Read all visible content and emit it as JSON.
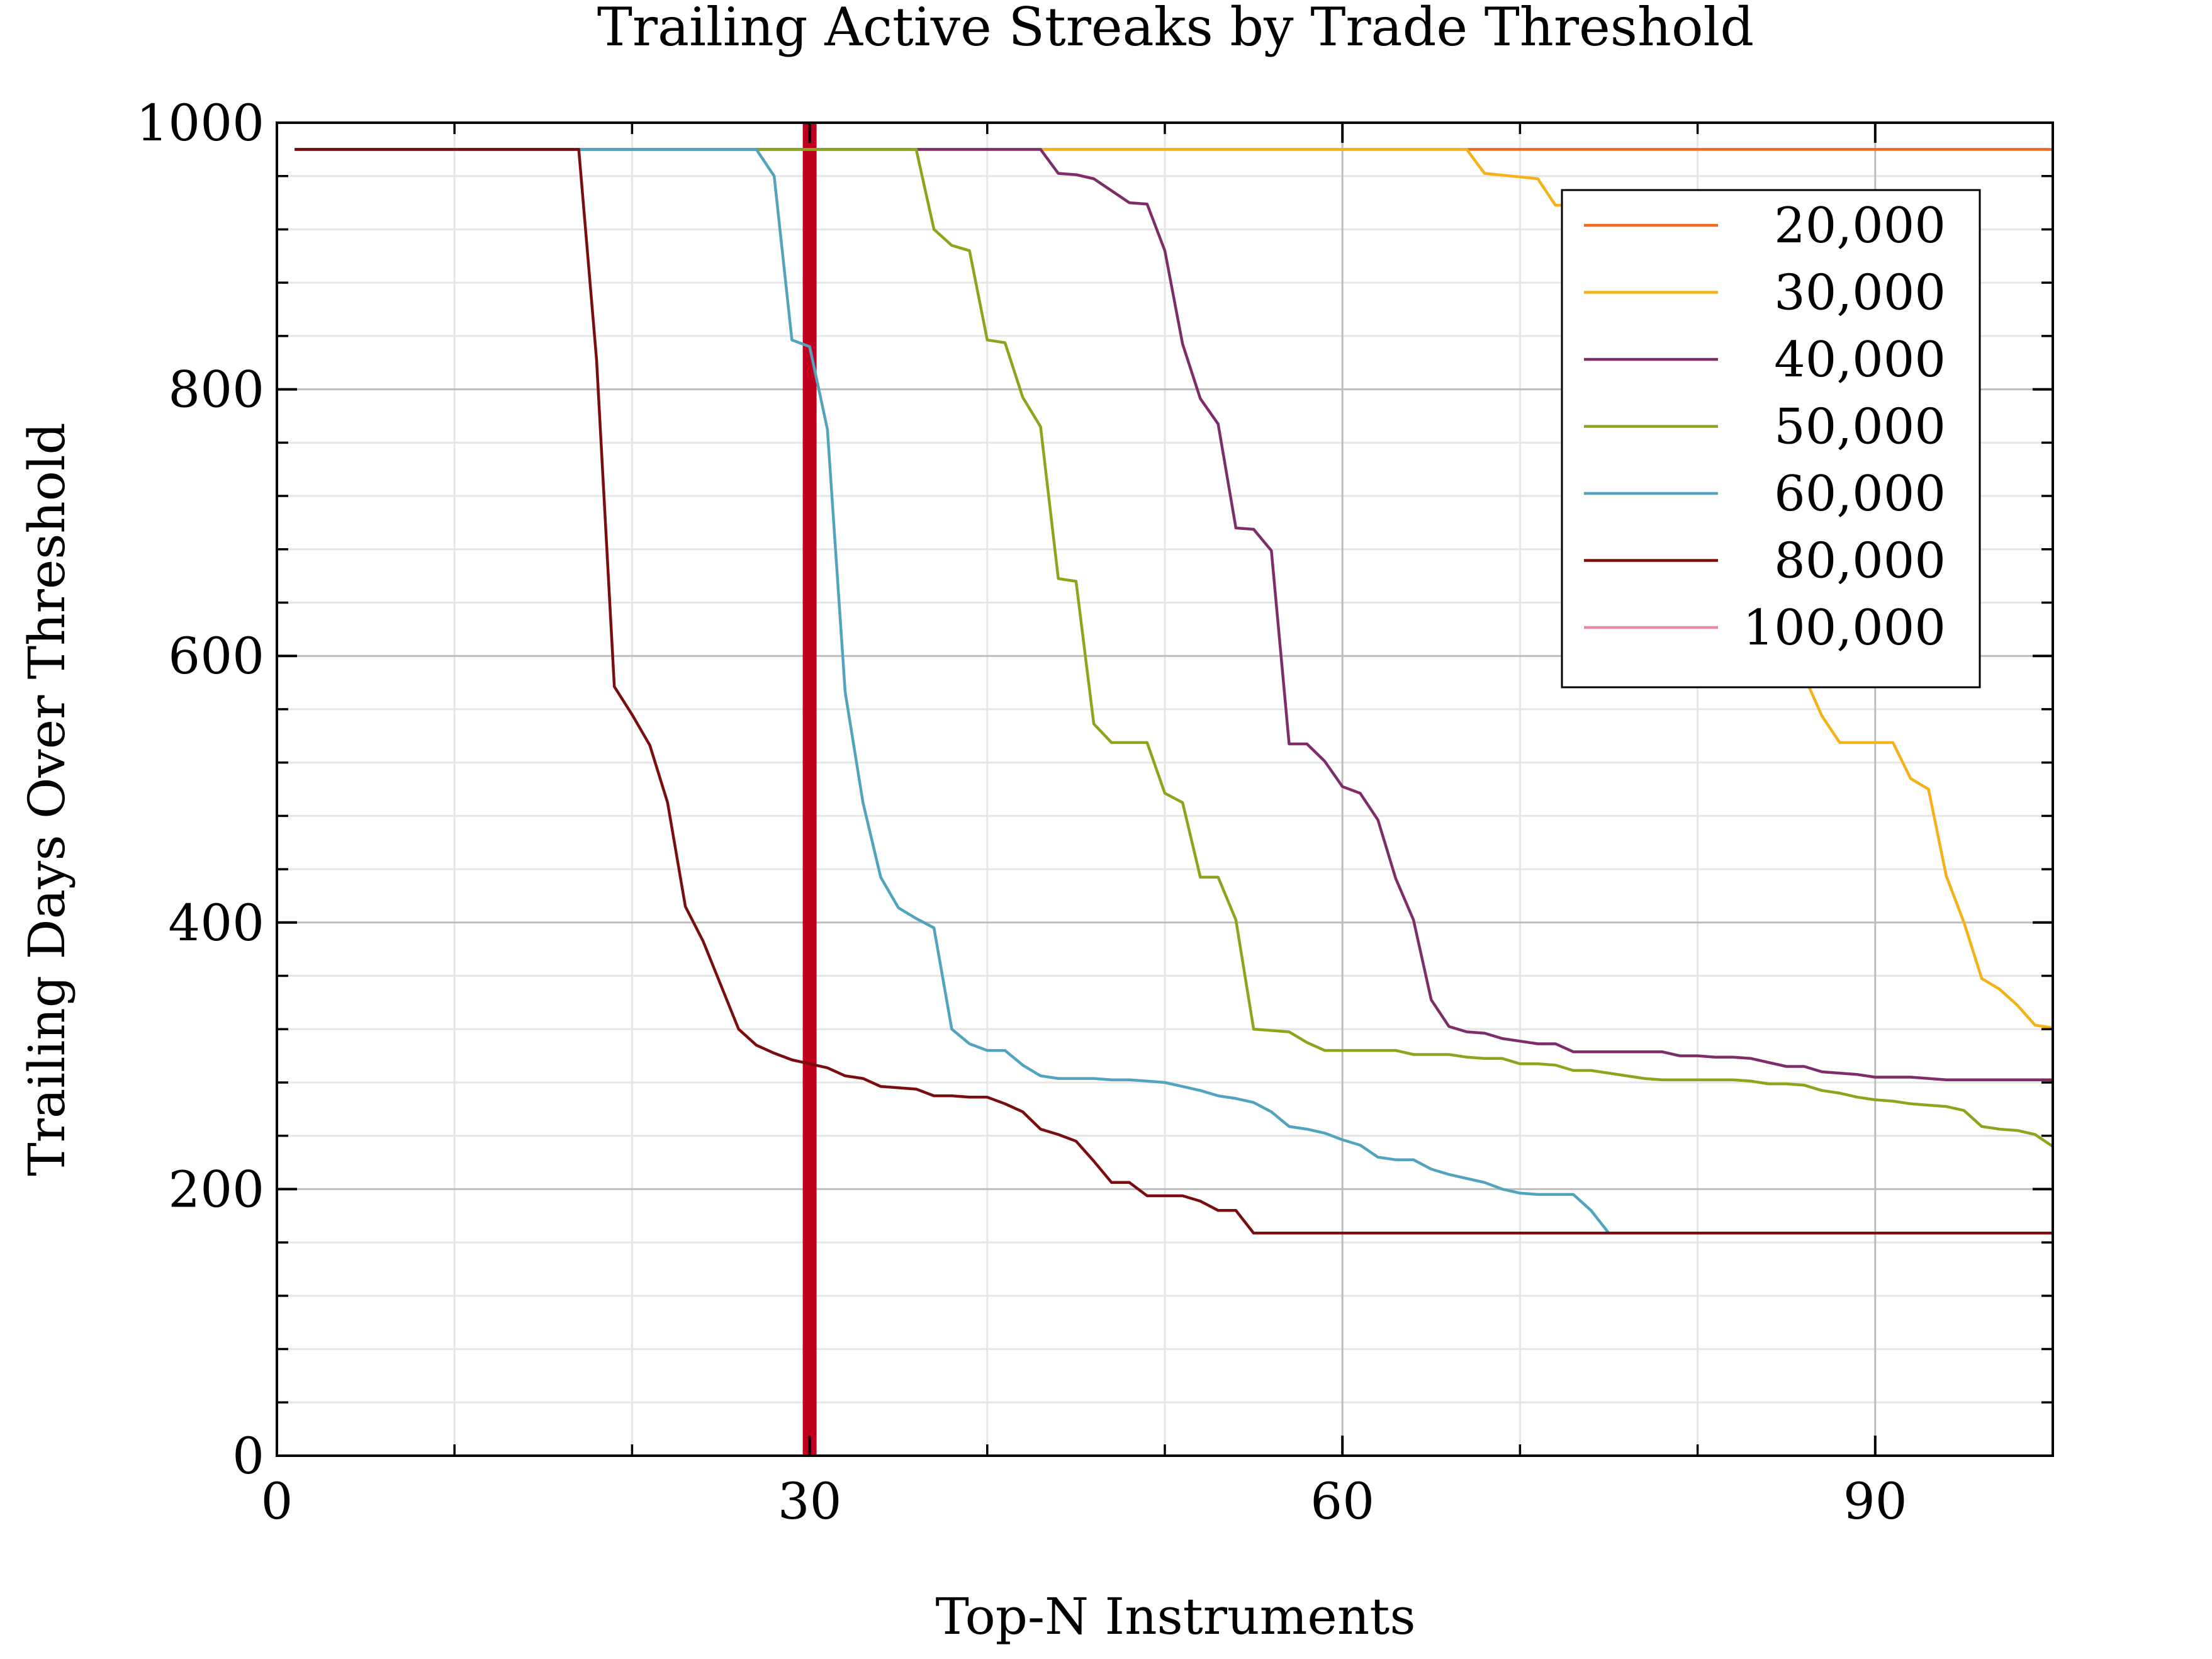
{
  "chart_data": {
    "type": "line",
    "title": "Trailing Active Streaks by Trade Threshold",
    "xlabel": "Top-N Instruments",
    "ylabel": "Trailing Days Over Threshold",
    "xlim": [
      0,
      100
    ],
    "ylim": [
      0,
      1000
    ],
    "xticks": [
      0,
      30,
      60,
      90
    ],
    "xtick_labels": [
      "0",
      "30",
      "60",
      "90"
    ],
    "yticks": [
      0,
      200,
      400,
      600,
      800,
      1000
    ],
    "ytick_labels": [
      "0",
      "200",
      "400",
      "600",
      "800",
      "1000"
    ],
    "grid": true,
    "legend_position": "top-right",
    "vline": {
      "x": 30,
      "color": "#c0001f"
    },
    "series": [
      {
        "name": "20,000",
        "color": "#ee6a1c",
        "x": [
          1,
          100
        ],
        "y": [
          980,
          980
        ]
      },
      {
        "name": "30,000",
        "color": "#f4b11a",
        "x": [
          1,
          67,
          68,
          71,
          72,
          73,
          74,
          78,
          79,
          80,
          81,
          82,
          83,
          84,
          85,
          86,
          87,
          88,
          89,
          90,
          91,
          92,
          93,
          94,
          95,
          96,
          97,
          98,
          99,
          100
        ],
        "y": [
          980,
          980,
          962,
          958,
          938,
          938,
          932,
          932,
          915,
          890,
          860,
          820,
          770,
          700,
          640,
          585,
          555,
          535,
          535,
          535,
          535,
          508,
          500,
          435,
          400,
          358,
          350,
          338,
          323,
          321
        ]
      },
      {
        "name": "40,000",
        "color": "#7d2d6a",
        "x": [
          1,
          43,
          44,
          45,
          46,
          47,
          48,
          49,
          50,
          51,
          52,
          53,
          54,
          55,
          56,
          57,
          58,
          59,
          60,
          61,
          62,
          63,
          64,
          65,
          66,
          67,
          68,
          69,
          70,
          71,
          72,
          73,
          74,
          75,
          76,
          77,
          78,
          79,
          80,
          81,
          82,
          83,
          84,
          85,
          86,
          87,
          88,
          89,
          90,
          91,
          92,
          93,
          94,
          95,
          96,
          97,
          98,
          99,
          100
        ],
        "y": [
          980,
          980,
          962,
          961,
          958,
          949,
          940,
          939,
          904,
          834,
          793,
          774,
          696,
          695,
          679,
          534,
          534,
          521,
          502,
          497,
          477,
          433,
          402,
          342,
          322,
          318,
          317,
          313,
          311,
          309,
          309,
          303,
          303,
          303,
          303,
          303,
          303,
          300,
          300,
          299,
          299,
          298,
          295,
          292,
          292,
          288,
          287,
          286,
          284,
          284,
          284,
          283,
          282,
          282,
          282,
          282,
          282,
          282,
          282
        ]
      },
      {
        "name": "50,000",
        "color": "#8aa61c",
        "x": [
          1,
          36,
          37,
          38,
          39,
          40,
          41,
          42,
          43,
          44,
          45,
          46,
          47,
          48,
          49,
          50,
          51,
          52,
          53,
          54,
          55,
          56,
          57,
          58,
          59,
          60,
          61,
          62,
          63,
          64,
          65,
          66,
          67,
          68,
          69,
          70,
          71,
          72,
          73,
          74,
          75,
          76,
          77,
          78,
          79,
          80,
          81,
          82,
          83,
          84,
          85,
          86,
          87,
          88,
          89,
          90,
          91,
          92,
          93,
          94,
          95,
          96,
          97,
          98,
          99,
          100
        ],
        "y": [
          980,
          980,
          920,
          908,
          904,
          837,
          835,
          794,
          772,
          658,
          656,
          549,
          535,
          535,
          535,
          497,
          490,
          434,
          434,
          402,
          320,
          319,
          318,
          310,
          304,
          304,
          304,
          304,
          304,
          301,
          301,
          301,
          299,
          298,
          298,
          294,
          294,
          293,
          289,
          289,
          287,
          285,
          283,
          282,
          282,
          282,
          282,
          282,
          281,
          279,
          279,
          278,
          274,
          272,
          269,
          267,
          266,
          264,
          263,
          262,
          259,
          247,
          245,
          244,
          241,
          232
        ]
      },
      {
        "name": "60,000",
        "color": "#52a3bd",
        "x": [
          1,
          27,
          28,
          29,
          30,
          31,
          32,
          33,
          34,
          35,
          36,
          37,
          38,
          39,
          40,
          41,
          42,
          43,
          44,
          45,
          46,
          47,
          48,
          49,
          50,
          51,
          52,
          53,
          54,
          55,
          56,
          57,
          58,
          59,
          60,
          61,
          62,
          63,
          64,
          65,
          66,
          67,
          68,
          69,
          70,
          71,
          72,
          73,
          74,
          75,
          100
        ],
        "y": [
          980,
          980,
          960,
          837,
          832,
          770,
          573,
          490,
          434,
          411,
          403,
          396,
          320,
          309,
          304,
          304,
          293,
          285,
          283,
          283,
          283,
          282,
          282,
          281,
          280,
          277,
          274,
          270,
          268,
          265,
          258,
          247,
          245,
          242,
          237,
          233,
          224,
          222,
          222,
          215,
          211,
          208,
          205,
          200,
          197,
          196,
          196,
          196,
          184,
          167,
          167
        ]
      },
      {
        "name": "80,000",
        "color": "#7a0d0d",
        "x": [
          1,
          17,
          18,
          19,
          20,
          21,
          22,
          23,
          24,
          25,
          26,
          27,
          28,
          29,
          30,
          31,
          32,
          33,
          34,
          35,
          36,
          37,
          38,
          39,
          40,
          41,
          42,
          43,
          44,
          45,
          46,
          47,
          48,
          49,
          50,
          51,
          52,
          53,
          54,
          55,
          100
        ],
        "y": [
          980,
          980,
          822,
          577,
          556,
          533,
          490,
          412,
          386,
          353,
          320,
          308,
          302,
          297,
          294,
          291,
          285,
          283,
          277,
          276,
          275,
          270,
          270,
          269,
          269,
          264,
          258,
          245,
          241,
          236,
          221,
          205,
          205,
          195,
          195,
          195,
          191,
          184,
          184,
          167,
          167
        ]
      },
      {
        "name": "100,000",
        "color": "#f08aa3",
        "x": [],
        "y": []
      }
    ]
  }
}
